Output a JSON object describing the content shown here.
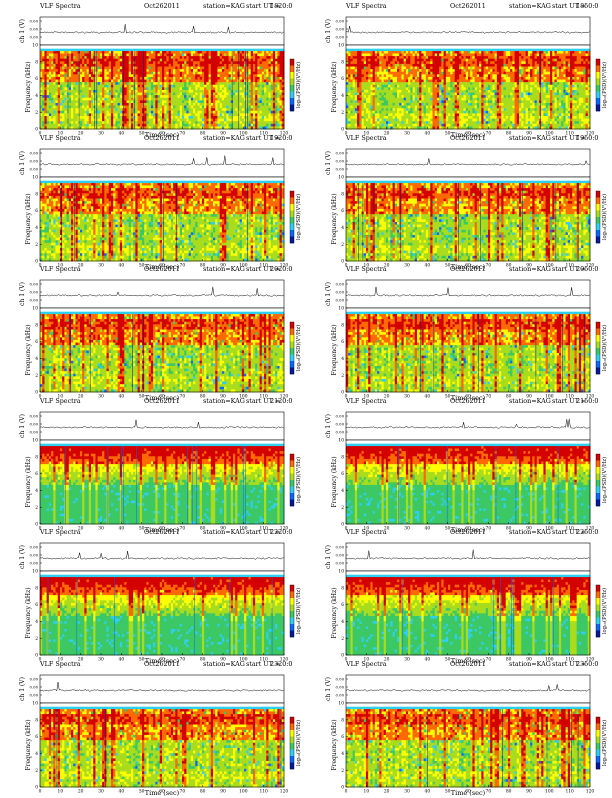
{
  "page": {
    "title": "VLF Spectra",
    "date": "Oct262011",
    "station": "station=KAG",
    "start_label": "start UT ="
  },
  "chart_data": {
    "type": "heatmap",
    "description_scope": "12 VLF spectrogram panels (2 columns x 6 rows), each with a ch1 waveform strip above",
    "x": {
      "label": "Time (sec)",
      "range": [
        0,
        120
      ],
      "ticks": [
        0,
        10,
        20,
        30,
        40,
        50,
        60,
        70,
        80,
        90,
        100,
        110,
        120
      ]
    },
    "y": {
      "label": "Frequency (kHz)",
      "range": [
        0,
        10
      ],
      "ticks": [
        0,
        2,
        4,
        6,
        8,
        10
      ]
    },
    "strip": {
      "label": "ch 1 (V)",
      "ticks": [
        "0.00",
        "0.00",
        "0.00"
      ]
    },
    "colorbar": {
      "label": "log₁₀(PSD)(V²/Hz)",
      "colors": [
        "#001a99",
        "#0a66ff",
        "#2ecff0",
        "#3cc864",
        "#aadc1e",
        "#ffff00",
        "#ff6a00",
        "#d40000"
      ]
    },
    "panels": [
      {
        "start_ut": "1820:0",
        "regime": "broadband"
      },
      {
        "start_ut": "1850:0",
        "regime": "broadband"
      },
      {
        "start_ut": "1920:0",
        "regime": "broadband"
      },
      {
        "start_ut": "1950:0",
        "regime": "broadband"
      },
      {
        "start_ut": "2020:0",
        "regime": "broadband"
      },
      {
        "start_ut": "2050:0",
        "regime": "broadband"
      },
      {
        "start_ut": "2120:0",
        "regime": "quiet-low-frequencies"
      },
      {
        "start_ut": "2150:0",
        "regime": "quiet-low-frequencies"
      },
      {
        "start_ut": "2220:0",
        "regime": "quiet-low-frequencies"
      },
      {
        "start_ut": "2250:0",
        "regime": "quiet-low-frequencies"
      },
      {
        "start_ut": "2320:0",
        "regime": "broadband"
      },
      {
        "start_ut": "2350:0",
        "regime": "broadband"
      }
    ]
  }
}
